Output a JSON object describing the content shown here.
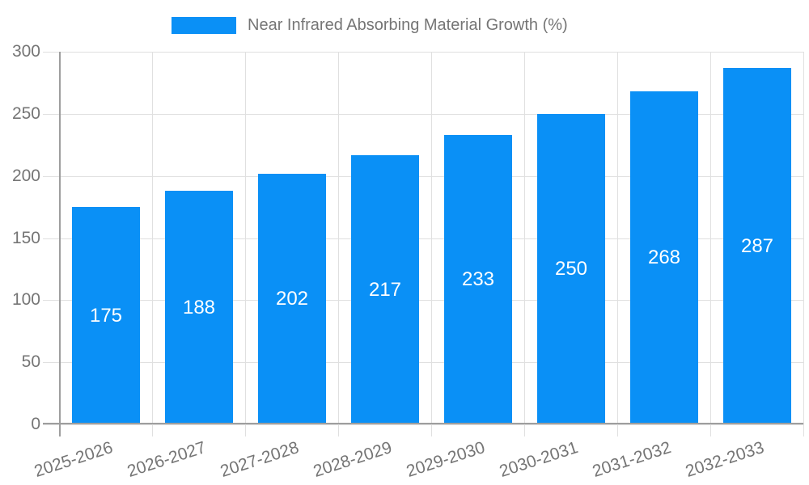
{
  "legend": {
    "label": "Near Infrared Absorbing Material Growth (%)"
  },
  "colors": {
    "bar": "#0a90f6",
    "grid": "#e0e0e0",
    "axis": "#9e9e9e",
    "text": "#757575",
    "value_text": "#ffffff",
    "background": "#ffffff"
  },
  "chart_data": {
    "type": "bar",
    "title": "Near Infrared Absorbing Material Growth (%)",
    "series": [
      {
        "name": "Near Infrared Absorbing Material Growth (%)",
        "values": [
          175,
          188,
          202,
          217,
          233,
          250,
          268,
          287
        ]
      }
    ],
    "categories": [
      "2025-2026",
      "2026-2027",
      "2027-2028",
      "2028-2029",
      "2029-2030",
      "2030-2031",
      "2031-2032",
      "2032-2033"
    ],
    "values": [
      175,
      188,
      202,
      217,
      233,
      250,
      268,
      287
    ],
    "xlabel": "",
    "ylabel": "",
    "ylim": [
      0,
      300
    ],
    "yticks": [
      0,
      50,
      100,
      150,
      200,
      250,
      300
    ],
    "grid": true,
    "legend_position": "top-center",
    "value_labels": "inside-middle-white",
    "x_tick_rotation_deg": -18
  }
}
